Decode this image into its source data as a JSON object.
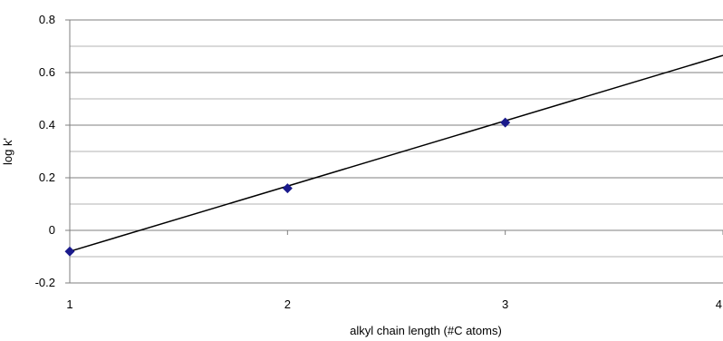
{
  "chart_data": {
    "type": "scatter",
    "title": "",
    "xlabel": "alkyl chain length (#C atoms)",
    "ylabel": "log k'",
    "xlim": [
      1,
      4
    ],
    "ylim": [
      -0.2,
      0.8
    ],
    "x_ticks": [
      "1",
      "2",
      "3",
      "4"
    ],
    "y_ticks": [
      "-0.2",
      "0",
      "0.2",
      "0.4",
      "0.6",
      "0.8"
    ],
    "series": [
      {
        "points": [
          {
            "x": 1,
            "y": -0.08
          },
          {
            "x": 2,
            "y": 0.16
          },
          {
            "x": 3,
            "y": 0.41
          }
        ]
      }
    ],
    "trendline": {
      "x": [
        1,
        4
      ],
      "y": [
        -0.08,
        0.665
      ]
    },
    "grid": true,
    "legend": "none",
    "colors": {
      "marker": "#1a1a8c",
      "line": "#000000",
      "grid": "#7f7f7f",
      "plot_border": "#7f7f7f"
    }
  }
}
